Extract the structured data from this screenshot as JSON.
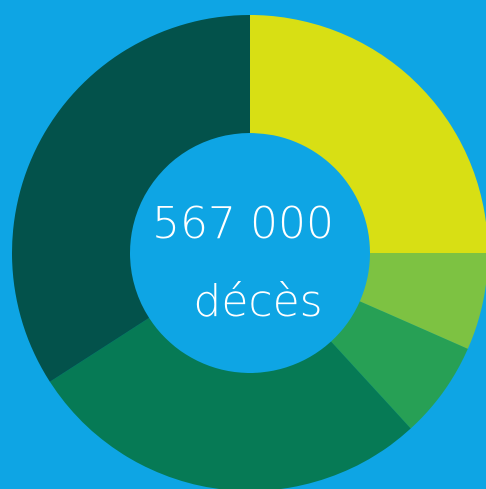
{
  "chart_data": {
    "type": "donut",
    "categories": [
      null,
      null,
      null,
      null,
      null
    ],
    "values": [
      25,
      6.6,
      6.6,
      27.7,
      34.1
    ],
    "colors": [
      "#d8df14",
      "#7dc242",
      "#27a055",
      "#067a55",
      "#03524b"
    ],
    "annotations": [
      "567 000",
      "décès"
    ]
  }
}
